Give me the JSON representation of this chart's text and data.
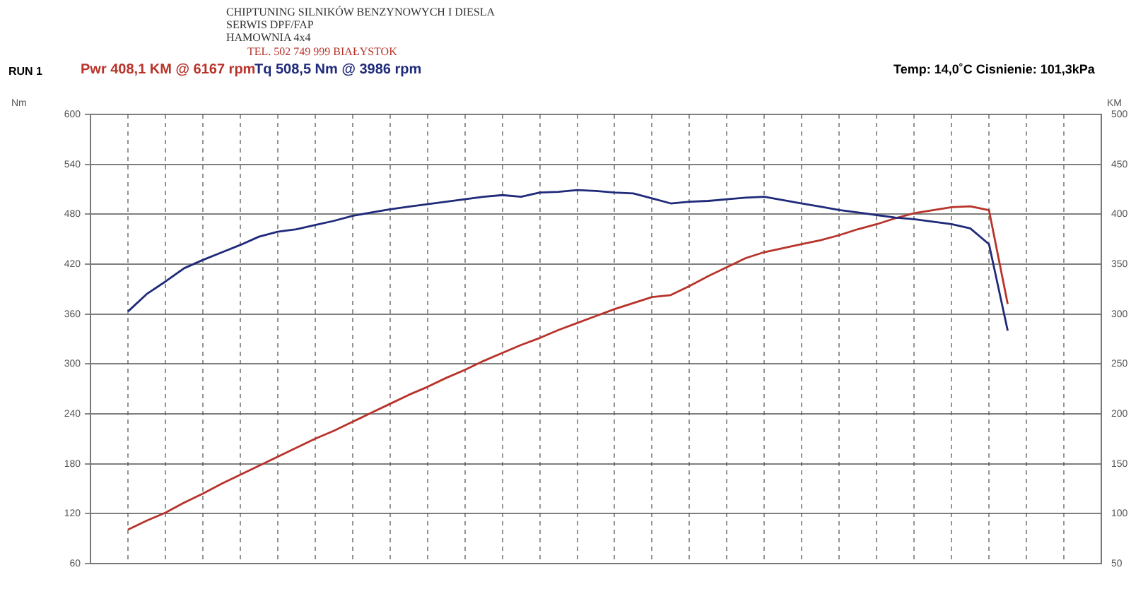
{
  "chart_data": {
    "type": "line",
    "ylabel": "Nm",
    "y2label": "KM",
    "annotations": [
      "CHIPTUNING SILNIKÓW BENZYNOWYCH I DIESLA",
      "SERWIS DPF/FAP",
      "HAMOWNIA 4x4",
      "TEL. 502 749 999   BIAŁYSTOK",
      "RUN 1",
      "Pwr  408,1 KM @ 6167 rpm",
      "Tq 508,5 Nm @ 3986 rpm",
      "Temp: 14,0˚C   Cisnienie: 101,3kPa"
    ],
    "categories": [
      null,
      null,
      null,
      null,
      null,
      null,
      null,
      null,
      null,
      null,
      null,
      null,
      null,
      null,
      null,
      null,
      null,
      null,
      null,
      null,
      null,
      null,
      null,
      null,
      null,
      null,
      null,
      null,
      null,
      null,
      null,
      null,
      null,
      null,
      null,
      null,
      null,
      null,
      null,
      null,
      null,
      null,
      null,
      null,
      null,
      null,
      null,
      null,
      null,
      null,
      null,
      null,
      null,
      null,
      null
    ],
    "series": [
      {
        "color": "#1f2a7a",
        "values": [
          null,
          null,
          363,
          384,
          399,
          415,
          425,
          434,
          443,
          453,
          459,
          462,
          467,
          472,
          478,
          482,
          486,
          489,
          492,
          495,
          498,
          501,
          503,
          501,
          506,
          507,
          509,
          508,
          506,
          505,
          499,
          493,
          495,
          496,
          498,
          500,
          501,
          497,
          493,
          489,
          485,
          482,
          479,
          476,
          474,
          471,
          468,
          463,
          444,
          340,
          null,
          null,
          null,
          null,
          null
        ]
      },
      {
        "color": "#b8332a",
        "axis": "y2",
        "values": [
          null,
          null,
          84,
          93,
          101,
          111,
          120,
          130,
          139,
          148,
          157,
          166,
          175,
          183,
          192,
          201,
          210,
          219,
          227,
          236,
          244,
          253,
          261,
          269,
          276,
          284,
          291,
          298,
          305,
          311,
          317,
          319,
          328,
          338,
          347,
          356,
          362,
          366,
          370,
          374,
          379,
          385,
          390,
          396,
          401,
          404,
          407,
          408,
          404,
          310,
          null,
          null,
          null,
          null,
          null
        ]
      }
    ],
    "ylim": [
      60,
      600
    ],
    "yticks": [
      60,
      120,
      180,
      240,
      300,
      360,
      420,
      480,
      540,
      600
    ],
    "y2lim": [
      50,
      500
    ],
    "y2ticks": [
      50,
      100,
      150,
      200,
      250,
      300,
      350,
      400,
      450,
      500
    ],
    "grid": true,
    "legend": false,
    "marker": "none",
    "line_style": "solid"
  }
}
